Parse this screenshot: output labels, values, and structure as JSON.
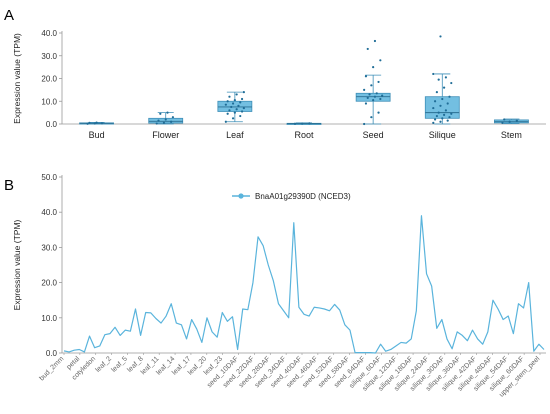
{
  "chart_data": [
    {
      "panel": "A",
      "type": "box",
      "title": "",
      "xlabel": "",
      "ylabel": "Expression value (TPM)",
      "ylim": [
        0,
        40
      ],
      "yticks": [
        "0.0",
        "10.0",
        "20.0",
        "30.0",
        "40.0"
      ],
      "grid": false,
      "color": "#5ab4dc",
      "categories": [
        "Bud",
        "Flower",
        "Leaf",
        "Root",
        "Seed",
        "Silique",
        "Stem"
      ],
      "boxes": [
        {
          "min": 0.0,
          "q1": 0.1,
          "median": 0.3,
          "q3": 0.5,
          "max": 0.7
        },
        {
          "min": 0.0,
          "q1": 0.4,
          "median": 1.2,
          "q3": 2.5,
          "max": 5.0
        },
        {
          "min": 1.0,
          "q1": 5.5,
          "median": 7.5,
          "q3": 10.0,
          "max": 14.0
        },
        {
          "min": 0.0,
          "q1": 0.1,
          "median": 0.2,
          "q3": 0.3,
          "max": 0.5
        },
        {
          "min": 0.0,
          "q1": 10.0,
          "median": 12.0,
          "q3": 13.5,
          "max": 21.5
        },
        {
          "min": 0.0,
          "q1": 2.5,
          "median": 5.0,
          "q3": 12.0,
          "max": 22.0
        },
        {
          "min": 0.2,
          "q1": 0.5,
          "median": 1.0,
          "q3": 1.8,
          "max": 2.2
        }
      ],
      "points": [
        [
          0.1,
          0.2,
          0.3,
          0.5,
          0.6
        ],
        [
          0.2,
          0.5,
          1.0,
          1.5,
          2.0,
          3.0,
          4.5,
          5.0
        ],
        [
          1.0,
          2.5,
          3.5,
          4.5,
          5.0,
          5.5,
          6.0,
          6.5,
          7.0,
          7.5,
          8.0,
          8.5,
          9.0,
          9.5,
          10.0,
          10.5,
          11.0,
          12.0,
          13.0,
          14.0
        ],
        [
          0.1,
          0.2,
          0.3
        ],
        [
          0.0,
          3.0,
          5.0,
          9.0,
          10.5,
          11.0,
          11.5,
          12.0,
          12.5,
          13.0,
          13.5,
          15.0,
          17.0,
          18.5,
          21.0,
          25.0,
          28.0,
          33.0,
          36.5
        ],
        [
          0.5,
          1.0,
          1.5,
          2.0,
          2.5,
          3.0,
          3.5,
          4.0,
          4.5,
          5.0,
          6.0,
          7.0,
          8.0,
          9.0,
          10.0,
          11.0,
          12.0,
          14.0,
          16.0,
          18.0,
          19.5,
          20.5,
          22.0,
          38.5
        ],
        [
          0.5,
          1.0,
          1.5,
          2.0
        ]
      ]
    },
    {
      "panel": "B",
      "type": "line",
      "title": "",
      "xlabel": "",
      "ylabel": "Expression value (TPM)",
      "ylim": [
        0,
        50
      ],
      "yticks": [
        "0.0",
        "10.0",
        "20.0",
        "30.0",
        "40.0",
        "50.0"
      ],
      "grid": false,
      "legend_position": "top-center",
      "x_labels": [
        "bud_2mm",
        "petal",
        "cotyledon",
        "leaf_2",
        "leaf_5",
        "leaf_8",
        "leaf_11",
        "leaf_14",
        "leaf_17",
        "leaf_20",
        "leaf_23",
        "seed_10DAF",
        "seed_22DAF",
        "seed_28DAF",
        "seed_34DAF",
        "seed_40DAF",
        "seed_46DAF",
        "seed_52DAF",
        "seed_58DAF",
        "seed_64DAF",
        "silique_6DAF",
        "silique_12DAF",
        "silique_18DAF",
        "silique_24DAF",
        "silique_30DAF",
        "silique_36DAF",
        "silique_42DAF",
        "silique_48DAF",
        "silique_54DAF",
        "silique_60DAF",
        "upper_stem_peel"
      ],
      "series": [
        {
          "name": "BnaA01g29390D (NCED3)",
          "color": "#5ab4dc",
          "values": [
            0.6,
            0.3,
            0.8,
            1.0,
            0.3,
            4.8,
            1.5,
            2.0,
            5.2,
            5.5,
            7.3,
            5.0,
            6.5,
            6.2,
            12.5,
            5.0,
            11.5,
            11.4,
            9.8,
            8.5,
            10.5,
            14.0,
            8.5,
            8.0,
            4.0,
            9.5,
            6.8,
            3.0,
            10.0,
            6.0,
            4.5,
            11.5,
            9.0,
            10.3,
            1.0,
            12.5,
            12.3,
            20.0,
            33.0,
            30.5,
            25.0,
            20.5,
            14.0,
            12.0,
            10.0,
            37.0,
            13.0,
            11.0,
            10.5,
            13.0,
            12.8,
            12.5,
            12.0,
            13.8,
            12.2,
            8.0,
            6.5,
            0.1,
            0.1,
            0.1,
            0.1,
            0.0,
            2.5,
            0.5,
            1.0,
            2.0,
            3.0,
            2.8,
            4.0,
            12.0,
            39.0,
            22.5,
            19.0,
            7.0,
            9.5,
            4.0,
            1.2,
            6.0,
            5.0,
            3.5,
            6.5,
            4.0,
            2.5,
            6.0,
            15.0,
            12.5,
            9.5,
            10.5,
            5.5,
            14.0,
            12.8,
            20.0,
            0.5,
            2.5,
            1.0
          ]
        }
      ]
    }
  ]
}
